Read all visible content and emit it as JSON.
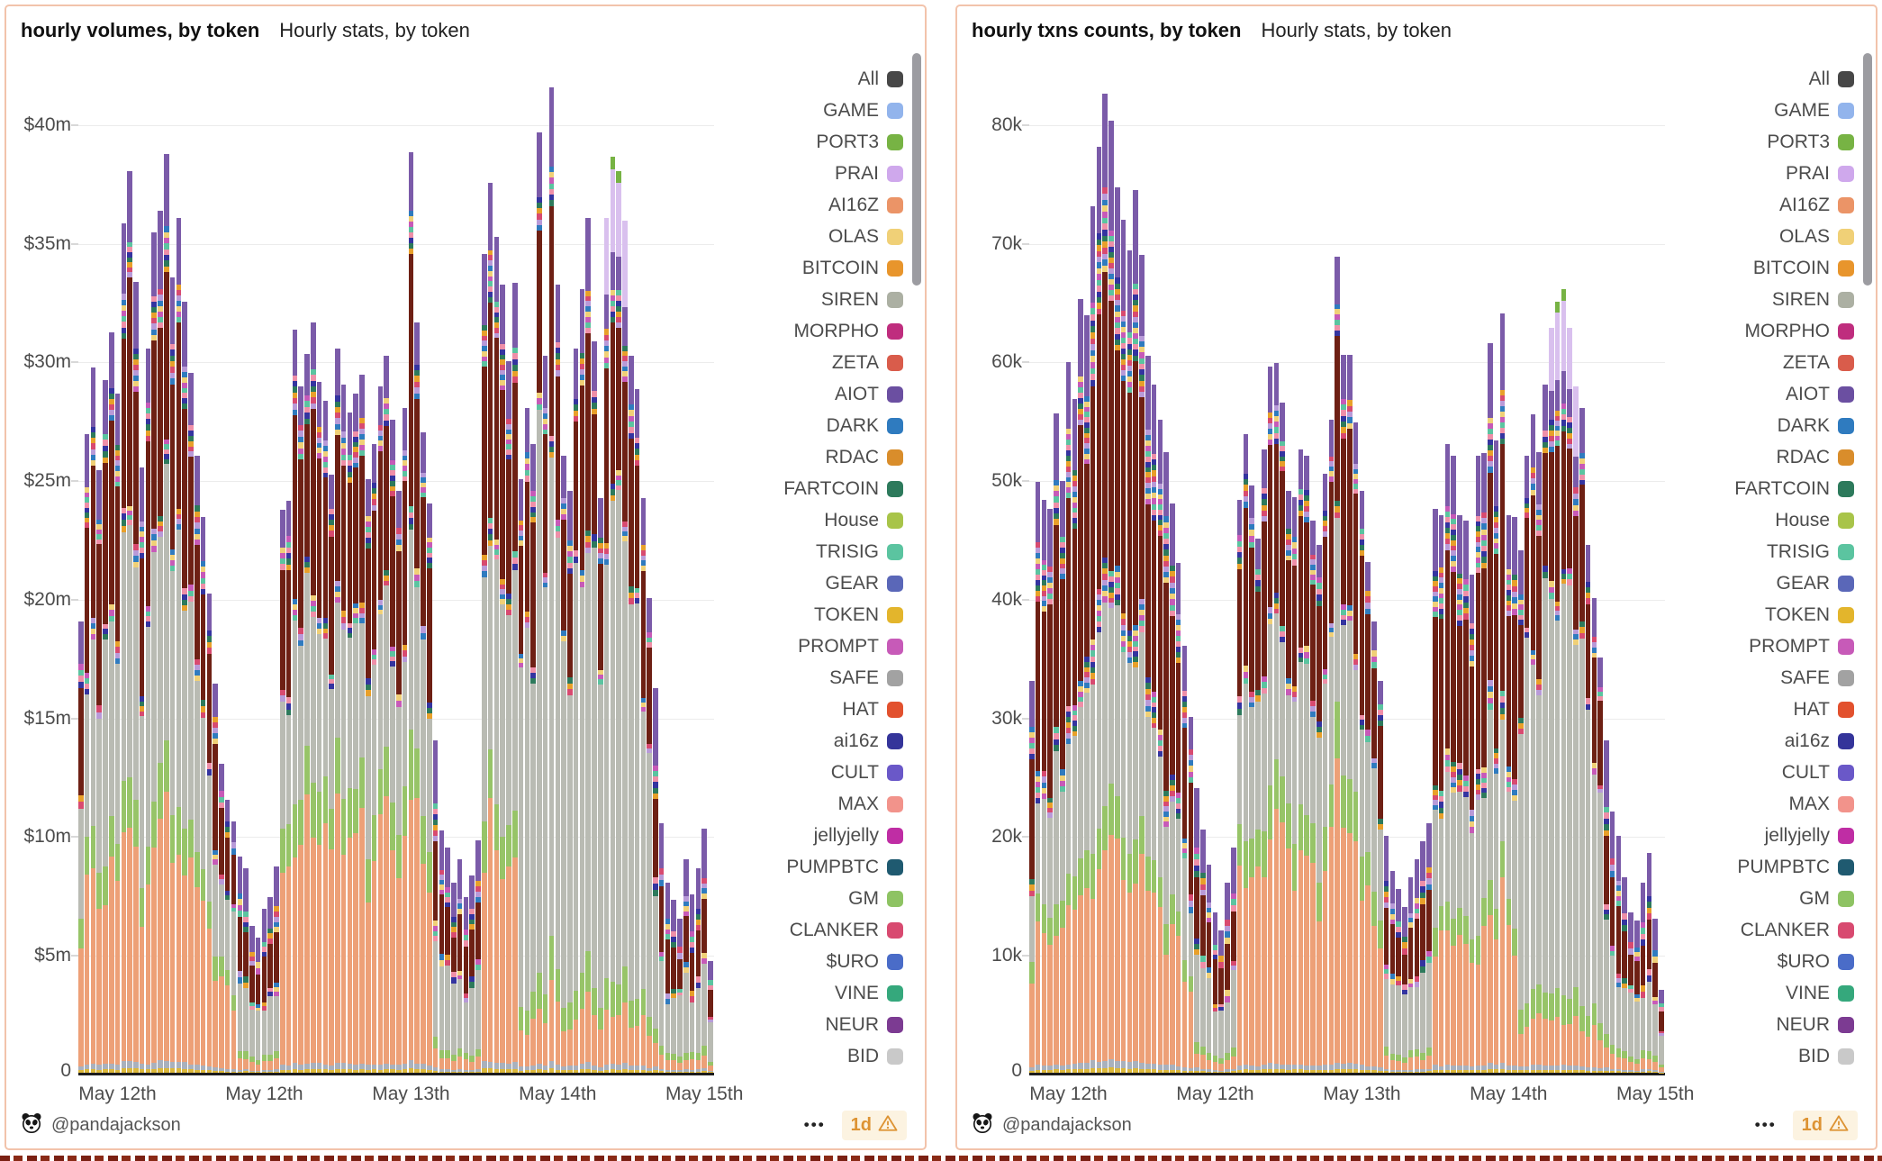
{
  "page": {
    "background": "#ffffff",
    "panel_border_color": "#f2c3ab",
    "bottom_strip_color": "#7a2013"
  },
  "footer": {
    "author": "@pandajackson",
    "menu_label": "•••",
    "badge": {
      "label": "1d",
      "color": "#dd9333",
      "background": "#fcf3e1",
      "warning_icon": "warning-triangle"
    },
    "avatar": "panda-icon"
  },
  "panels": [
    {
      "title": "hourly volumes, by token",
      "subtitle": "Hourly stats, by token"
    },
    {
      "title": "hourly txns counts, by token",
      "subtitle": "Hourly stats, by token"
    }
  ],
  "legend": {
    "position": "right",
    "scrollbar": true,
    "items": [
      {
        "label": "All",
        "color": "#474747"
      },
      {
        "label": "GAME",
        "color": "#92b4ec"
      },
      {
        "label": "PORT3",
        "color": "#77b344"
      },
      {
        "label": "PRAI",
        "color": "#cfa8ec"
      },
      {
        "label": "AI16Z",
        "color": "#eb9467"
      },
      {
        "label": "OLAS",
        "color": "#f0d077"
      },
      {
        "label": "BITCOIN",
        "color": "#e8952c"
      },
      {
        "label": "SIREN",
        "color": "#acb0a3"
      },
      {
        "label": "MORPHO",
        "color": "#bf2d7e"
      },
      {
        "label": "ZETA",
        "color": "#d95c4b"
      },
      {
        "label": "AIOT",
        "color": "#6b4fa1"
      },
      {
        "label": "DARK",
        "color": "#2f7bbf"
      },
      {
        "label": "RDAC",
        "color": "#d98d2b"
      },
      {
        "label": "FARTCOIN",
        "color": "#2d7a5c"
      },
      {
        "label": "House",
        "color": "#a8c449"
      },
      {
        "label": "TRISIG",
        "color": "#5bc4a0"
      },
      {
        "label": "GEAR",
        "color": "#5a67b8"
      },
      {
        "label": "TOKEN",
        "color": "#e3b52c"
      },
      {
        "label": "PROMPT",
        "color": "#c75ab8"
      },
      {
        "label": "SAFE",
        "color": "#a2a2a2"
      },
      {
        "label": "HAT",
        "color": "#e2512e"
      },
      {
        "label": "ai16z",
        "color": "#34349a"
      },
      {
        "label": "CULT",
        "color": "#6a58c8"
      },
      {
        "label": "MAX",
        "color": "#f2938b"
      },
      {
        "label": "jellyjelly",
        "color": "#bf2da4"
      },
      {
        "label": "PUMPBTC",
        "color": "#1f5a70"
      },
      {
        "label": "GM",
        "color": "#8ec363"
      },
      {
        "label": "CLANKER",
        "color": "#d84a70"
      },
      {
        "label": "$URO",
        "color": "#4a6cc8"
      },
      {
        "label": "VINE",
        "color": "#35a87c"
      },
      {
        "label": "NEUR",
        "color": "#7c3b92"
      },
      {
        "label": "BID",
        "color": "#c9c9c9"
      }
    ]
  },
  "chart_data": [
    {
      "type": "bar",
      "stacked": true,
      "title": "hourly volumes, by token",
      "subtitle": "Hourly stats, by token",
      "y_unit": "$m",
      "grid": true,
      "legend_position": "right",
      "y_axis": {
        "labels": [
          "$40m",
          "$35m",
          "$30m",
          "$25m",
          "$20m",
          "$15m",
          "$10m",
          "$5m",
          "0"
        ],
        "values": [
          40,
          35,
          30,
          25,
          20,
          15,
          10,
          5,
          0
        ],
        "scale_max": 45
      },
      "x_axis": {
        "labels": [
          "May 12th",
          "May 12th",
          "May 13th",
          "May 14th",
          "May 15th"
        ],
        "tick_bar_indices": [
          6,
          30,
          54,
          78,
          102
        ]
      },
      "bar_count": 104,
      "totals": [
        19.0,
        26.9,
        29.7,
        25.4,
        29.2,
        31.2,
        28.6,
        35.8,
        38.0,
        33.3,
        25.5,
        30.5,
        35.4,
        36.3,
        38.7,
        33.5,
        36.0,
        32.5,
        29.5,
        26.0,
        23.4,
        20.2,
        16.4,
        13.0,
        11.5,
        10.6,
        9.1,
        8.6,
        6.2,
        5.7,
        6.9,
        7.4,
        8.7,
        23.7,
        24.1,
        31.3,
        28.9,
        30.3,
        31.6,
        29.1,
        28.3,
        25.2,
        30.5,
        29.0,
        27.8,
        28.6,
        29.4,
        25.0,
        26.5,
        28.9,
        30.2,
        27.5,
        24.5,
        28.0,
        38.8,
        31.6,
        27.0,
        24.0,
        14.0,
        10.2,
        9.5,
        8.0,
        9.0,
        7.4,
        8.3,
        9.8,
        34.5,
        37.5,
        35.2,
        33.2,
        30.0,
        33.3,
        25.0,
        28.0,
        26.5,
        39.6,
        30.2,
        41.5,
        33.2,
        26.0,
        24.5,
        30.5,
        33.0,
        36.0,
        30.8,
        24.2,
        36.0,
        38.6,
        38.0,
        35.9,
        30.2,
        28.8,
        24.2,
        20.0,
        16.2,
        10.5,
        8.0,
        7.3,
        6.5,
        9.0,
        7.5,
        8.6,
        10.3,
        4.7
      ],
      "stack_render": {
        "segment_colors": {
          "gold_base": "#dcb83a",
          "misc_base": "#a9b1bd",
          "salmon_AI16Z": "#eda077",
          "green_GM": "#97c468",
          "gray_SIREN": "#b9bbb3",
          "dark_red": "#6e2014",
          "purple_AIOT": "#7b5ba9",
          "lavender_PRAI": "#d9c0ee",
          "green_cap_PORT3": "#77b344"
        },
        "mix_palette": [
          "#d84a70",
          "#e8a02a",
          "#2d7a5c",
          "#3434a0",
          "#ef8fa8",
          "#5bc4a0",
          "#c75ab8",
          "#f0d077",
          "#2f7bbf",
          "#b89ad8"
        ],
        "profiles": {
          "normal": [
            0.005,
            0.008,
            0.262,
            0.058,
            0.276,
            0.228,
            0.082,
            0.081
          ],
          "salmonheavy": [
            0.005,
            0.008,
            0.33,
            0.072,
            0.22,
            0.228,
            0.076,
            0.061
          ],
          "grayheavy": [
            0.004,
            0.007,
            0.068,
            0.042,
            0.54,
            0.196,
            0.068,
            0.075
          ],
          "maroonheavy": [
            0.005,
            0.008,
            0.218,
            0.048,
            0.192,
            0.295,
            0.132,
            0.102
          ],
          "dip": [
            0.006,
            0.01,
            0.052,
            0.036,
            0.33,
            0.232,
            0.148,
            0.186
          ]
        },
        "profile_runs": [
          [
            "normal",
            26
          ],
          [
            "dip",
            7
          ],
          [
            "salmonheavy",
            25
          ],
          [
            "dip",
            8
          ],
          [
            "normal",
            6
          ],
          [
            "grayheavy",
            22
          ],
          [
            "dip",
            10
          ]
        ],
        "lavender_bars": [
          86,
          87,
          88,
          89
        ],
        "green_cap_bars": [
          87,
          88
        ]
      }
    },
    {
      "type": "bar",
      "stacked": true,
      "title": "hourly txns counts, by token",
      "subtitle": "Hourly stats, by token",
      "y_unit": "k",
      "grid": true,
      "legend_position": "right",
      "y_axis": {
        "labels": [
          "80k",
          "70k",
          "60k",
          "50k",
          "40k",
          "30k",
          "20k",
          "10k",
          "0"
        ],
        "values": [
          80,
          70,
          60,
          50,
          40,
          30,
          20,
          10,
          0
        ],
        "scale_max": 90
      },
      "x_axis": {
        "labels": [
          "May 12th",
          "May 12th",
          "May 13th",
          "May 14th",
          "May 15th"
        ],
        "tick_bar_indices": [
          6,
          30,
          54,
          78,
          102
        ]
      },
      "bar_count": 104,
      "totals": [
        33.0,
        49.8,
        48.3,
        47.5,
        55.6,
        49.9,
        59.9,
        56.8,
        65.2,
        63.8,
        73.0,
        78.0,
        82.5,
        80.2,
        74.6,
        71.9,
        69.3,
        74.4,
        68.9,
        60.4,
        58.0,
        55.0,
        52.3,
        48.0,
        43.0,
        36.0,
        30.0,
        24.0,
        20.5,
        17.5,
        13.5,
        12.0,
        16.0,
        19.0,
        48.3,
        53.8,
        49.5,
        45.0,
        52.5,
        59.5,
        59.8,
        56.5,
        49.0,
        48.5,
        52.5,
        52.0,
        46.5,
        44.5,
        50.5,
        55.0,
        68.8,
        60.5,
        60.5,
        54.8,
        49.0,
        43.0,
        38.0,
        33.0,
        20.0,
        17.0,
        15.5,
        14.0,
        16.5,
        18.0,
        19.5,
        21.0,
        47.5,
        47.0,
        53.0,
        52.0,
        47.0,
        46.5,
        42.0,
        52.0,
        52.2,
        61.5,
        53.3,
        64.0,
        47.0,
        46.8,
        44.0,
        52.0,
        55.5,
        52.3,
        58.0,
        62.8,
        65.0,
        66.0,
        62.8,
        57.8,
        56.0,
        44.5,
        40.0,
        35.0,
        28.0,
        22.0,
        20.0,
        16.5,
        13.5,
        12.8,
        16.0,
        18.5,
        13.0,
        7.0
      ],
      "stack_render": {
        "segment_colors": {
          "gold_base": "#dcb83a",
          "misc_base": "#a9b1bd",
          "salmon_AI16Z": "#eda077",
          "green_GM": "#97c468",
          "gray_SIREN": "#b9bbb3",
          "dark_red": "#6e2014",
          "purple_AIOT": "#7b5ba9",
          "lavender_PRAI": "#d9c0ee",
          "green_cap_PORT3": "#77b344"
        },
        "mix_palette": [
          "#d84a70",
          "#e8a02a",
          "#2d7a5c",
          "#3434a0",
          "#ef8fa8",
          "#5bc4a0",
          "#c75ab8",
          "#f0d077",
          "#2f7bbf",
          "#b89ad8"
        ],
        "profiles": {
          "normal": [
            0.005,
            0.008,
            0.262,
            0.058,
            0.276,
            0.228,
            0.082,
            0.081
          ],
          "salmonheavy": [
            0.005,
            0.008,
            0.33,
            0.072,
            0.22,
            0.228,
            0.076,
            0.061
          ],
          "grayheavy": [
            0.004,
            0.007,
            0.068,
            0.042,
            0.54,
            0.196,
            0.068,
            0.075
          ],
          "maroonheavy": [
            0.005,
            0.008,
            0.218,
            0.048,
            0.192,
            0.295,
            0.132,
            0.102
          ],
          "dip": [
            0.006,
            0.01,
            0.052,
            0.036,
            0.33,
            0.232,
            0.148,
            0.186
          ]
        },
        "profile_runs": [
          [
            "maroonheavy",
            27
          ],
          [
            "dip",
            7
          ],
          [
            "salmonheavy",
            24
          ],
          [
            "dip",
            8
          ],
          [
            "maroonheavy",
            14
          ],
          [
            "grayheavy",
            14
          ],
          [
            "dip",
            10
          ]
        ],
        "lavender_bars": [
          85,
          86,
          87,
          88,
          89
        ],
        "green_cap_bars": [
          86,
          87
        ]
      }
    }
  ]
}
